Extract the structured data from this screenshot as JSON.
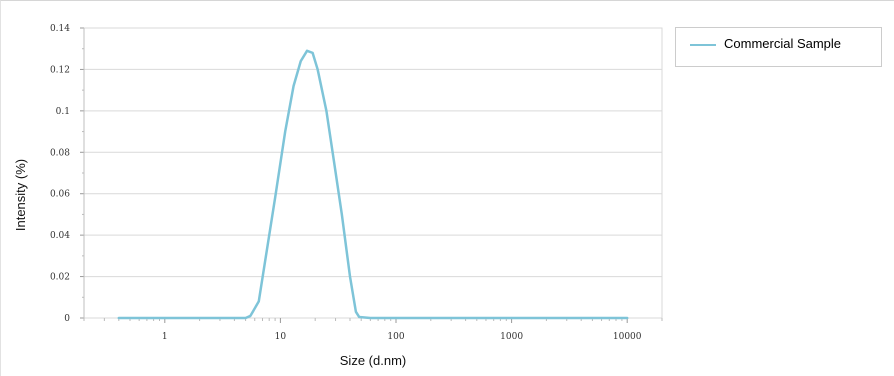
{
  "chart_data": {
    "type": "line",
    "title": "",
    "xlabel": "Size (d.nm)",
    "ylabel": "Intensity (%)",
    "x_scale": "log",
    "xlim": [
      0.2,
      20000
    ],
    "ylim": [
      0,
      0.14
    ],
    "x_ticks": [
      1,
      10,
      100,
      1000,
      10000
    ],
    "x_tick_labels": [
      "1",
      "10",
      "100",
      "1000",
      "10000"
    ],
    "y_ticks": [
      0,
      0.02,
      0.04,
      0.06,
      0.08,
      0.1,
      0.12,
      0.14
    ],
    "y_tick_labels": [
      "0",
      "0.02",
      "0.04",
      "0.06",
      "0.08",
      "0.1",
      "0.12",
      "0.14"
    ],
    "grid": true,
    "legend_position": "right",
    "series": [
      {
        "name": "Commercial Sample",
        "color": "#7ec4d8",
        "x": [
          0.4,
          1,
          2,
          3,
          4,
          5,
          5.5,
          6.5,
          7.5,
          9,
          11,
          13,
          15,
          17,
          19,
          21,
          25,
          29,
          34,
          40,
          45,
          48,
          60,
          100,
          1000,
          10000
        ],
        "y": [
          0,
          0,
          0,
          0,
          0,
          0,
          0.001,
          0.008,
          0.03,
          0.058,
          0.09,
          0.112,
          0.124,
          0.129,
          0.128,
          0.12,
          0.1,
          0.076,
          0.05,
          0.02,
          0.003,
          0.0005,
          0,
          0,
          0,
          0
        ]
      }
    ]
  }
}
